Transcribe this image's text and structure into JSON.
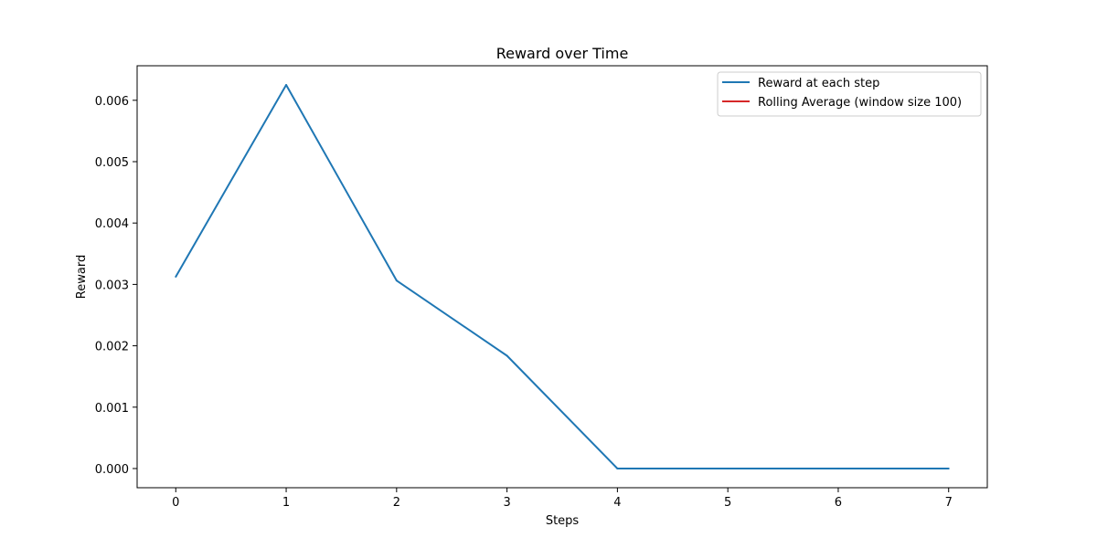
{
  "chart_data": {
    "type": "line",
    "title": "Reward over Time",
    "xlabel": "Steps",
    "ylabel": "Reward",
    "xlim": [
      -0.35,
      7.35
    ],
    "ylim": [
      -0.0003125,
      0.0065625
    ],
    "x_ticks": [
      0,
      1,
      2,
      3,
      4,
      5,
      6,
      7
    ],
    "x_tick_labels": [
      "0",
      "1",
      "2",
      "3",
      "4",
      "5",
      "6",
      "7"
    ],
    "y_ticks": [
      0.0,
      0.001,
      0.002,
      0.003,
      0.004,
      0.005,
      0.006
    ],
    "y_tick_labels": [
      "0.000",
      "0.001",
      "0.002",
      "0.003",
      "0.004",
      "0.005",
      "0.006"
    ],
    "grid": false,
    "legend_position": "top-right",
    "series": [
      {
        "name": "Reward at each step",
        "color": "#1f77b4",
        "x": [
          0,
          1,
          2,
          3,
          4,
          5,
          6,
          7
        ],
        "y": [
          0.003125,
          0.00625,
          0.003063,
          0.001838,
          0.0,
          0.0,
          0.0,
          0.0
        ]
      },
      {
        "name": "Rolling Average (window size 100)",
        "color": "#d62728",
        "x": [],
        "y": []
      }
    ]
  }
}
